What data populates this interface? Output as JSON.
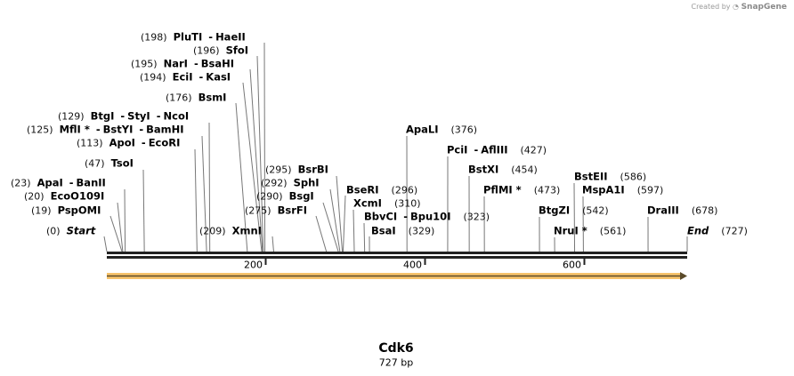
{
  "credit": {
    "prefix": "Created by",
    "brand": "SnapGene"
  },
  "sequence": {
    "name": "Cdk6",
    "length_label": "727 bp",
    "length": 727
  },
  "ruler": {
    "ticks": [
      "200",
      "400",
      "600"
    ]
  },
  "feature": {
    "name": "orange-arrow-feature",
    "start": 0,
    "end": 727,
    "direction": "forward",
    "color": "#f6c26b"
  },
  "sites": [
    {
      "pos": "(198)",
      "site": 198,
      "names": [
        "PluTI",
        "HaeII"
      ]
    },
    {
      "pos": "(196)",
      "site": 196,
      "names": [
        "SfoI"
      ]
    },
    {
      "pos": "(195)",
      "site": 195,
      "names": [
        "NarI",
        "BsaHI"
      ]
    },
    {
      "pos": "(194)",
      "site": 194,
      "names": [
        "EciI",
        "KasI"
      ]
    },
    {
      "pos": "(176)",
      "site": 176,
      "names": [
        "BsmI"
      ]
    },
    {
      "pos": "(129)",
      "site": 129,
      "names": [
        "BtgI",
        "StyI",
        "NcoI"
      ]
    },
    {
      "pos": "(125)",
      "site": 125,
      "names": [
        "MflI *",
        "BstYI",
        "BamHI"
      ]
    },
    {
      "pos": "(113)",
      "site": 113,
      "names": [
        "ApoI",
        "EcoRI"
      ]
    },
    {
      "pos": "(47)",
      "site": 47,
      "names": [
        "TsoI"
      ]
    },
    {
      "pos": "(23)",
      "site": 23,
      "names": [
        "ApaI",
        "BanII"
      ]
    },
    {
      "pos": "(20)",
      "site": 20,
      "names": [
        "EcoO109I"
      ]
    },
    {
      "pos": "(19)",
      "site": 19,
      "names": [
        "PspOMI"
      ]
    },
    {
      "pos": "(0)",
      "site": 0,
      "names": [
        "Start"
      ]
    },
    {
      "pos": "(209)",
      "site": 209,
      "names": [
        "XmnI"
      ]
    },
    {
      "pos": "(275)",
      "site": 275,
      "names": [
        "BsrFI"
      ]
    },
    {
      "pos": "(290)",
      "site": 290,
      "names": [
        "BsgI"
      ]
    },
    {
      "pos": "(292)",
      "site": 292,
      "names": [
        "SphI"
      ]
    },
    {
      "pos": "(295)",
      "site": 295,
      "names": [
        "BsrBI"
      ]
    },
    {
      "pos": "(296)",
      "site": 296,
      "names": [
        "BseRI"
      ]
    },
    {
      "pos": "(310)",
      "site": 310,
      "names": [
        "XcmI"
      ]
    },
    {
      "pos": "(323)",
      "site": 323,
      "names": [
        "BbvCI",
        "Bpu10I"
      ]
    },
    {
      "pos": "(329)",
      "site": 329,
      "names": [
        "BsaI"
      ]
    },
    {
      "pos": "(376)",
      "site": 376,
      "names": [
        "ApaLI"
      ]
    },
    {
      "pos": "(427)",
      "site": 427,
      "names": [
        "PciI",
        "AflIII"
      ]
    },
    {
      "pos": "(454)",
      "site": 454,
      "names": [
        "BstXI"
      ]
    },
    {
      "pos": "(473)",
      "site": 473,
      "names": [
        "PflMI *"
      ]
    },
    {
      "pos": "(542)",
      "site": 542,
      "names": [
        "BtgZI"
      ]
    },
    {
      "pos": "(561)",
      "site": 561,
      "names": [
        "NruI *"
      ]
    },
    {
      "pos": "(586)",
      "site": 586,
      "names": [
        "BstEII"
      ]
    },
    {
      "pos": "(597)",
      "site": 597,
      "names": [
        "MspA1I"
      ]
    },
    {
      "pos": "(678)",
      "site": 678,
      "names": [
        "DraIII"
      ]
    },
    {
      "pos": "(727)",
      "site": 727,
      "names": [
        "End"
      ]
    }
  ]
}
